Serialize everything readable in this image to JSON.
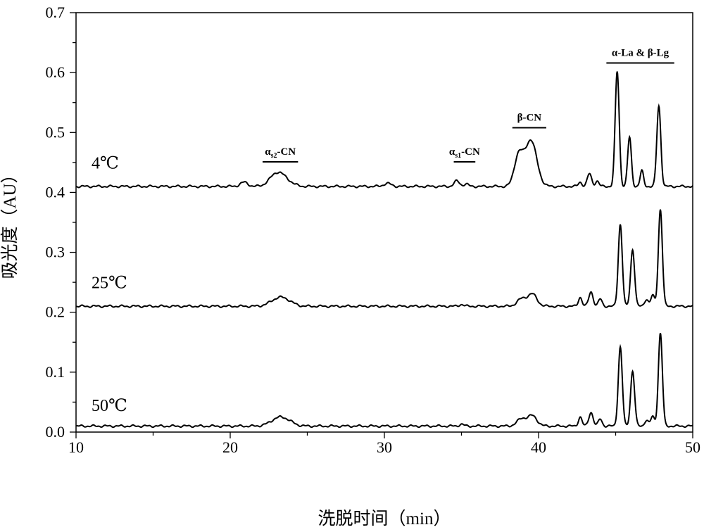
{
  "chart_data": {
    "type": "line",
    "xlabel": "洗脱时间（min）",
    "ylabel": "吸光度（AU）",
    "xlim": [
      10,
      50
    ],
    "ylim": [
      0.0,
      0.7
    ],
    "x_ticks": [
      "10",
      "20",
      "30",
      "40",
      "50"
    ],
    "y_ticks": [
      "0.0",
      "0.1",
      "0.2",
      "0.3",
      "0.4",
      "0.5",
      "0.6",
      "0.7"
    ],
    "grid": false,
    "legend": "none",
    "series": [
      {
        "name": "4℃",
        "baseline": 0.41,
        "peaks": [
          {
            "x": 20.9,
            "h": 0.007,
            "w": 0.25
          },
          {
            "x": 23.0,
            "h": 0.02,
            "w": 0.45
          },
          {
            "x": 23.6,
            "h": 0.008,
            "w": 0.45
          },
          {
            "x": 30.2,
            "h": 0.005,
            "w": 0.25
          },
          {
            "x": 34.7,
            "h": 0.009,
            "w": 0.18
          },
          {
            "x": 35.3,
            "h": 0.004,
            "w": 0.15
          },
          {
            "x": 38.7,
            "h": 0.05,
            "w": 0.28
          },
          {
            "x": 39.5,
            "h": 0.077,
            "w": 0.38
          },
          {
            "x": 42.7,
            "h": 0.007,
            "w": 0.12
          },
          {
            "x": 43.3,
            "h": 0.021,
            "w": 0.14
          },
          {
            "x": 43.8,
            "h": 0.009,
            "w": 0.12
          },
          {
            "x": 45.1,
            "h": 0.192,
            "w": 0.13
          },
          {
            "x": 45.9,
            "h": 0.082,
            "w": 0.12
          },
          {
            "x": 46.7,
            "h": 0.026,
            "w": 0.11
          },
          {
            "x": 47.8,
            "h": 0.134,
            "w": 0.13
          }
        ]
      },
      {
        "name": "25℃",
        "baseline": 0.21,
        "peaks": [
          {
            "x": 23.1,
            "h": 0.012,
            "w": 0.5
          },
          {
            "x": 23.7,
            "h": 0.006,
            "w": 0.45
          },
          {
            "x": 35.0,
            "h": 0.003,
            "w": 0.15
          },
          {
            "x": 38.9,
            "h": 0.012,
            "w": 0.3
          },
          {
            "x": 39.6,
            "h": 0.02,
            "w": 0.3
          },
          {
            "x": 42.7,
            "h": 0.015,
            "w": 0.12
          },
          {
            "x": 43.4,
            "h": 0.024,
            "w": 0.14
          },
          {
            "x": 44.0,
            "h": 0.012,
            "w": 0.12
          },
          {
            "x": 45.3,
            "h": 0.137,
            "w": 0.13
          },
          {
            "x": 46.1,
            "h": 0.095,
            "w": 0.13
          },
          {
            "x": 47.0,
            "h": 0.012,
            "w": 0.12
          },
          {
            "x": 47.4,
            "h": 0.018,
            "w": 0.12
          },
          {
            "x": 47.9,
            "h": 0.162,
            "w": 0.13
          }
        ]
      },
      {
        "name": "50℃",
        "baseline": 0.01,
        "peaks": [
          {
            "x": 23.1,
            "h": 0.012,
            "w": 0.5
          },
          {
            "x": 23.7,
            "h": 0.006,
            "w": 0.45
          },
          {
            "x": 35.0,
            "h": 0.003,
            "w": 0.15
          },
          {
            "x": 38.9,
            "h": 0.012,
            "w": 0.3
          },
          {
            "x": 39.6,
            "h": 0.017,
            "w": 0.3
          },
          {
            "x": 42.7,
            "h": 0.015,
            "w": 0.12
          },
          {
            "x": 43.4,
            "h": 0.023,
            "w": 0.14
          },
          {
            "x": 44.0,
            "h": 0.012,
            "w": 0.12
          },
          {
            "x": 45.3,
            "h": 0.132,
            "w": 0.13
          },
          {
            "x": 46.1,
            "h": 0.092,
            "w": 0.13
          },
          {
            "x": 47.0,
            "h": 0.01,
            "w": 0.12
          },
          {
            "x": 47.4,
            "h": 0.016,
            "w": 0.12
          },
          {
            "x": 47.9,
            "h": 0.155,
            "w": 0.13
          }
        ]
      }
    ],
    "annotations": [
      {
        "label": "α",
        "sub": "s2",
        "rest": "-CN",
        "x_range": [
          22.1,
          24.4
        ],
        "y": 0.451
      },
      {
        "label": "α",
        "sub": "s1",
        "rest": "-CN",
        "x_range": [
          34.5,
          35.9
        ],
        "y": 0.451
      },
      {
        "label": "β-CN",
        "x_range": [
          38.3,
          40.5
        ],
        "y": 0.508
      },
      {
        "label": "α-La & β-Lg",
        "x_range": [
          44.4,
          48.8
        ],
        "y": 0.616
      }
    ]
  }
}
